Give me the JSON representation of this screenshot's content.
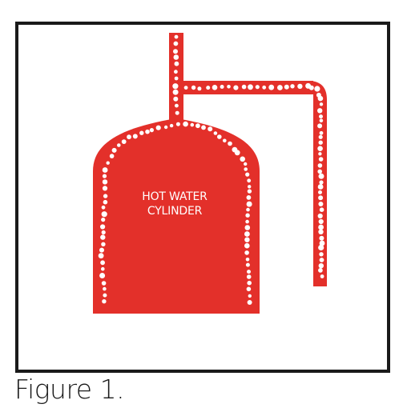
{
  "diagram": {
    "cylinder_label_line1": "HOT WATER",
    "cylinder_label_line2": "CYLINDER",
    "colors": {
      "tank": "#e3302a",
      "frame": "#1a1a1a",
      "bubbles": "#ffffff"
    }
  },
  "caption": "Figure 1."
}
